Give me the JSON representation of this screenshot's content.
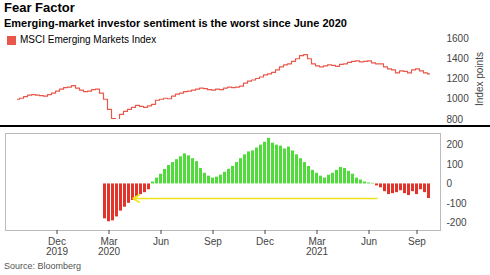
{
  "chart_data": [
    {
      "type": "line",
      "title": "Fear Factor",
      "subtitle": "Emerging-market investor sentiment is the worst since June 2020",
      "source": "Source: Bloomberg",
      "categories": [
        null,
        null,
        null,
        null,
        null,
        null,
        null,
        null,
        null,
        null,
        "Dec\n2019",
        null,
        null,
        null,
        null,
        null,
        null,
        null,
        null,
        null,
        null,
        null,
        null,
        "Mar\n2020",
        null,
        null,
        null,
        null,
        null,
        null,
        null,
        null,
        null,
        null,
        null,
        null,
        "Jun",
        null,
        null,
        null,
        null,
        null,
        null,
        null,
        null,
        null,
        null,
        null,
        null,
        "Sep",
        null,
        null,
        null,
        null,
        null,
        null,
        null,
        null,
        null,
        null,
        null,
        null,
        "Dec",
        null,
        null,
        null,
        null,
        null,
        null,
        null,
        null,
        null,
        null,
        null,
        null,
        "Mar\n2021",
        null,
        null,
        null,
        null,
        null,
        null,
        null,
        null,
        null,
        null,
        null,
        null,
        "Jun",
        null,
        null,
        null,
        null,
        null,
        null,
        null,
        null,
        null,
        null,
        null,
        "Sep",
        null,
        null,
        null
      ],
      "series": [
        {
          "name": "MSCI Emerging Markets Index",
          "color": "#e8584a",
          "values": [
            1000,
            1010,
            1025,
            1040,
            1045,
            1040,
            1035,
            1030,
            1045,
            1060,
            1080,
            1100,
            1115,
            1120,
            1135,
            1110,
            1090,
            1075,
            1080,
            1095,
            1100,
            1060,
            1000,
            900,
            810,
            800,
            850,
            880,
            900,
            920,
            940,
            930,
            920,
            935,
            950,
            990,
            1000,
            1010,
            1005,
            1030,
            1050,
            1060,
            1075,
            1080,
            1090,
            1100,
            1110,
            1105,
            1095,
            1090,
            1100,
            1095,
            1110,
            1120,
            1115,
            1120,
            1130,
            1160,
            1180,
            1190,
            1205,
            1220,
            1240,
            1250,
            1265,
            1290,
            1320,
            1340,
            1350,
            1375,
            1400,
            1430,
            1440,
            1400,
            1350,
            1330,
            1320,
            1330,
            1340,
            1335,
            1325,
            1345,
            1350,
            1365,
            1375,
            1380,
            1370,
            1375,
            1380,
            1360,
            1350,
            1350,
            1320,
            1300,
            1290,
            1260,
            1280,
            1275,
            1260,
            1290,
            1300,
            1280,
            1260,
            1250
          ]
        }
      ],
      "ylim": [
        800,
        1600
      ],
      "yticks": [
        800,
        1000,
        1200,
        1400,
        1600
      ],
      "ylabel": "Index points",
      "legend": "top-left",
      "tick_labels": "y",
      "grid": false
    },
    {
      "type": "bar",
      "categories": [
        null,
        null,
        null,
        null,
        null,
        null,
        null,
        null,
        null,
        null,
        "Dec\n2019",
        null,
        null,
        null,
        null,
        null,
        null,
        null,
        null,
        null,
        null,
        null,
        null,
        "Mar\n2020",
        null,
        null,
        null,
        null,
        null,
        null,
        null,
        null,
        null,
        null,
        null,
        null,
        "Jun",
        null,
        null,
        null,
        null,
        null,
        null,
        null,
        null,
        null,
        null,
        null,
        null,
        "Sep",
        null,
        null,
        null,
        null,
        null,
        null,
        null,
        null,
        null,
        null,
        null,
        null,
        "Dec",
        null,
        null,
        null,
        null,
        null,
        null,
        null,
        null,
        null,
        null,
        null,
        null,
        "Mar\n2021",
        null,
        null,
        null,
        null,
        null,
        null,
        null,
        null,
        null,
        null,
        null,
        null,
        "Jun",
        null,
        null,
        null,
        null,
        null,
        null,
        null,
        null,
        null,
        null,
        null,
        "Sep",
        null,
        null,
        null
      ],
      "values": [
        null,
        null,
        null,
        null,
        null,
        null,
        null,
        null,
        null,
        null,
        null,
        null,
        null,
        null,
        null,
        null,
        null,
        null,
        null,
        null,
        null,
        null,
        -180,
        -195,
        -190,
        -170,
        -140,
        -120,
        -100,
        -85,
        -70,
        -55,
        -45,
        -30,
        10,
        30,
        50,
        75,
        95,
        110,
        125,
        140,
        155,
        145,
        130,
        115,
        80,
        55,
        40,
        30,
        35,
        45,
        60,
        75,
        90,
        110,
        130,
        150,
        165,
        170,
        185,
        200,
        215,
        235,
        210,
        200,
        195,
        180,
        190,
        170,
        150,
        130,
        110,
        90,
        70,
        55,
        40,
        30,
        45,
        55,
        70,
        85,
        80,
        65,
        50,
        30,
        20,
        10,
        5,
        3,
        -10,
        -20,
        -40,
        -55,
        -50,
        -45,
        -35,
        -50,
        -60,
        -40,
        -55,
        -30,
        -45,
        -75
      ],
      "colors": [
        null,
        null,
        null,
        null,
        null,
        null,
        null,
        null,
        null,
        null,
        null,
        null,
        null,
        null,
        null,
        null,
        null,
        null,
        null,
        null,
        null,
        null,
        "#e3342b",
        "#e3342b",
        "#e3342b",
        "#e3342b",
        "#e3342b",
        "#e3342b",
        "#e3342b",
        "#e3342b",
        "#e3342b",
        "#e3342b",
        "#e3342b",
        "#e3342b",
        "#4fdc3b",
        "#4fdc3b",
        "#4fdc3b",
        "#4fdc3b",
        "#4fdc3b",
        "#4fdc3b",
        "#4fdc3b",
        "#4fdc3b",
        "#4fdc3b",
        "#4fdc3b",
        "#4fdc3b",
        "#4fdc3b",
        "#4fdc3b",
        "#4fdc3b",
        "#4fdc3b",
        "#4fdc3b",
        "#4fdc3b",
        "#4fdc3b",
        "#4fdc3b",
        "#4fdc3b",
        "#4fdc3b",
        "#4fdc3b",
        "#4fdc3b",
        "#4fdc3b",
        "#4fdc3b",
        "#4fdc3b",
        "#4fdc3b",
        "#4fdc3b",
        "#4fdc3b",
        "#4fdc3b",
        "#4fdc3b",
        "#4fdc3b",
        "#4fdc3b",
        "#4fdc3b",
        "#4fdc3b",
        "#4fdc3b",
        "#4fdc3b",
        "#4fdc3b",
        "#4fdc3b",
        "#4fdc3b",
        "#4fdc3b",
        "#4fdc3b",
        "#4fdc3b",
        "#4fdc3b",
        "#4fdc3b",
        "#4fdc3b",
        "#4fdc3b",
        "#4fdc3b",
        "#4fdc3b",
        "#4fdc3b",
        "#4fdc3b",
        "#4fdc3b",
        "#4fdc3b",
        "#4fdc3b",
        "#4fdc3b",
        "#4fdc3b",
        "#e3342b",
        "#e3342b",
        "#e3342b",
        "#e3342b",
        "#e3342b",
        "#e3342b",
        "#e3342b",
        "#e3342b",
        "#e3342b",
        "#e3342b",
        "#e3342b",
        "#e3342b",
        "#e3342b",
        "#e3342b"
      ],
      "ylim": [
        -240,
        260
      ],
      "yticks": [
        -200,
        -100,
        0,
        100,
        200
      ],
      "grid": false
    }
  ]
}
